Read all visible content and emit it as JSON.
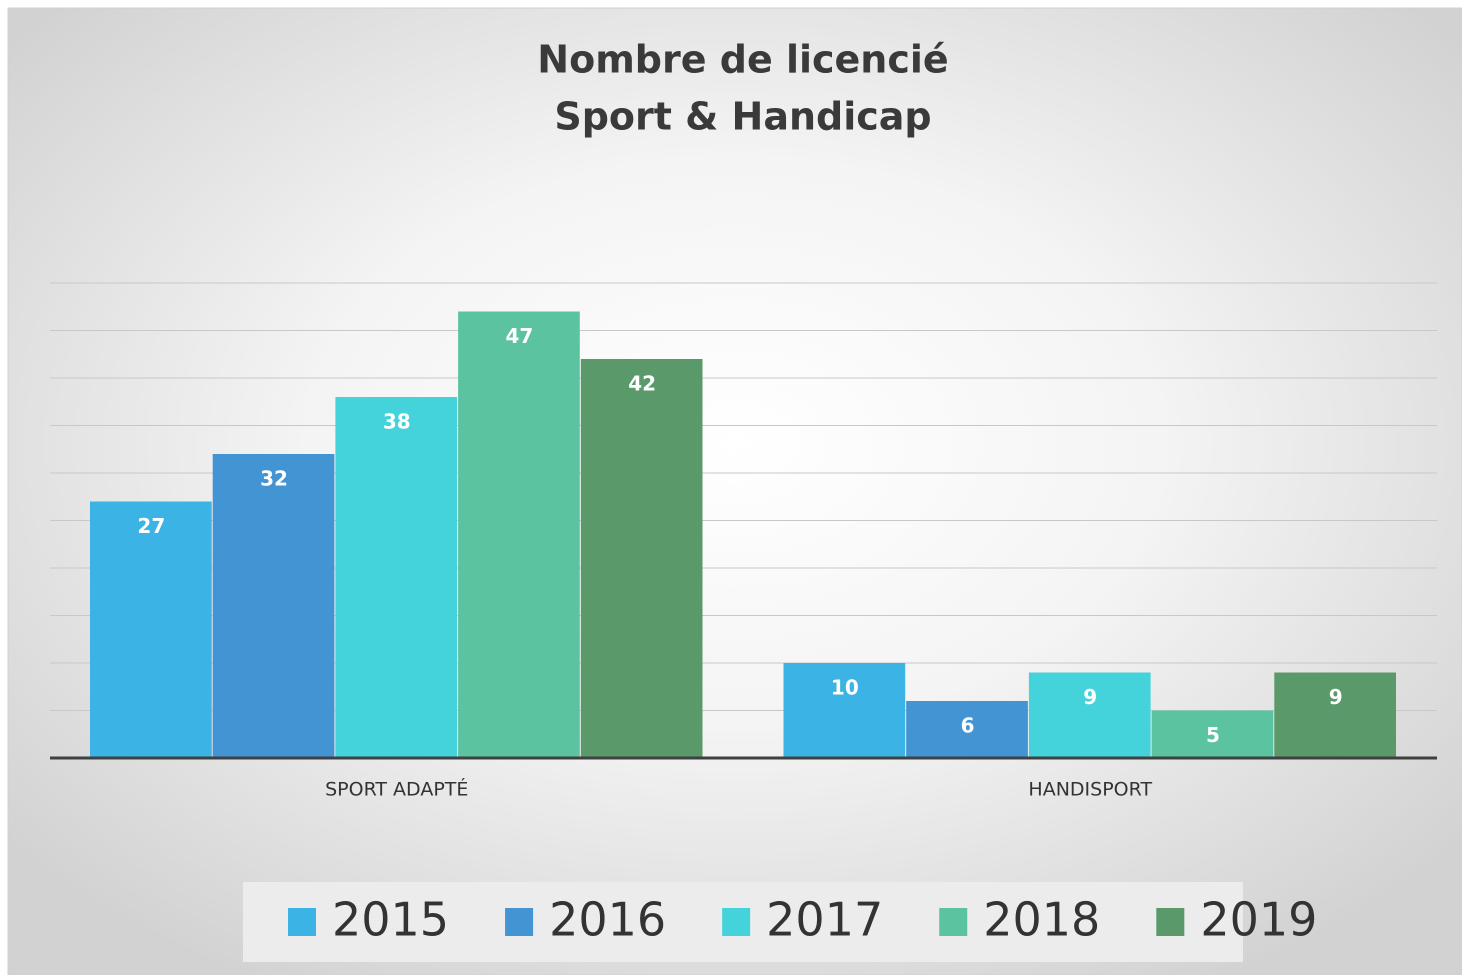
{
  "chart_data": {
    "type": "bar",
    "title": [
      "Nombre de licencié",
      "Sport & Handicap"
    ],
    "categories": [
      "SPORT ADAPTÉ",
      "HANDISPORT"
    ],
    "series": [
      {
        "name": "2015",
        "color": "#3bb4e5",
        "values": [
          27,
          10
        ]
      },
      {
        "name": "2016",
        "color": "#4394d3",
        "values": [
          32,
          6
        ]
      },
      {
        "name": "2017",
        "color": "#45d3db",
        "values": [
          38,
          9
        ]
      },
      {
        "name": "2018",
        "color": "#5cc3a1",
        "values": [
          47,
          5
        ]
      },
      {
        "name": "2019",
        "color": "#5a9a6a",
        "values": [
          42,
          9
        ]
      }
    ],
    "ylim": [
      0,
      50
    ],
    "yticks": [
      0,
      5,
      10,
      15,
      20,
      25,
      30,
      35,
      40,
      45,
      50
    ],
    "grid": true,
    "legend": "bottom"
  }
}
